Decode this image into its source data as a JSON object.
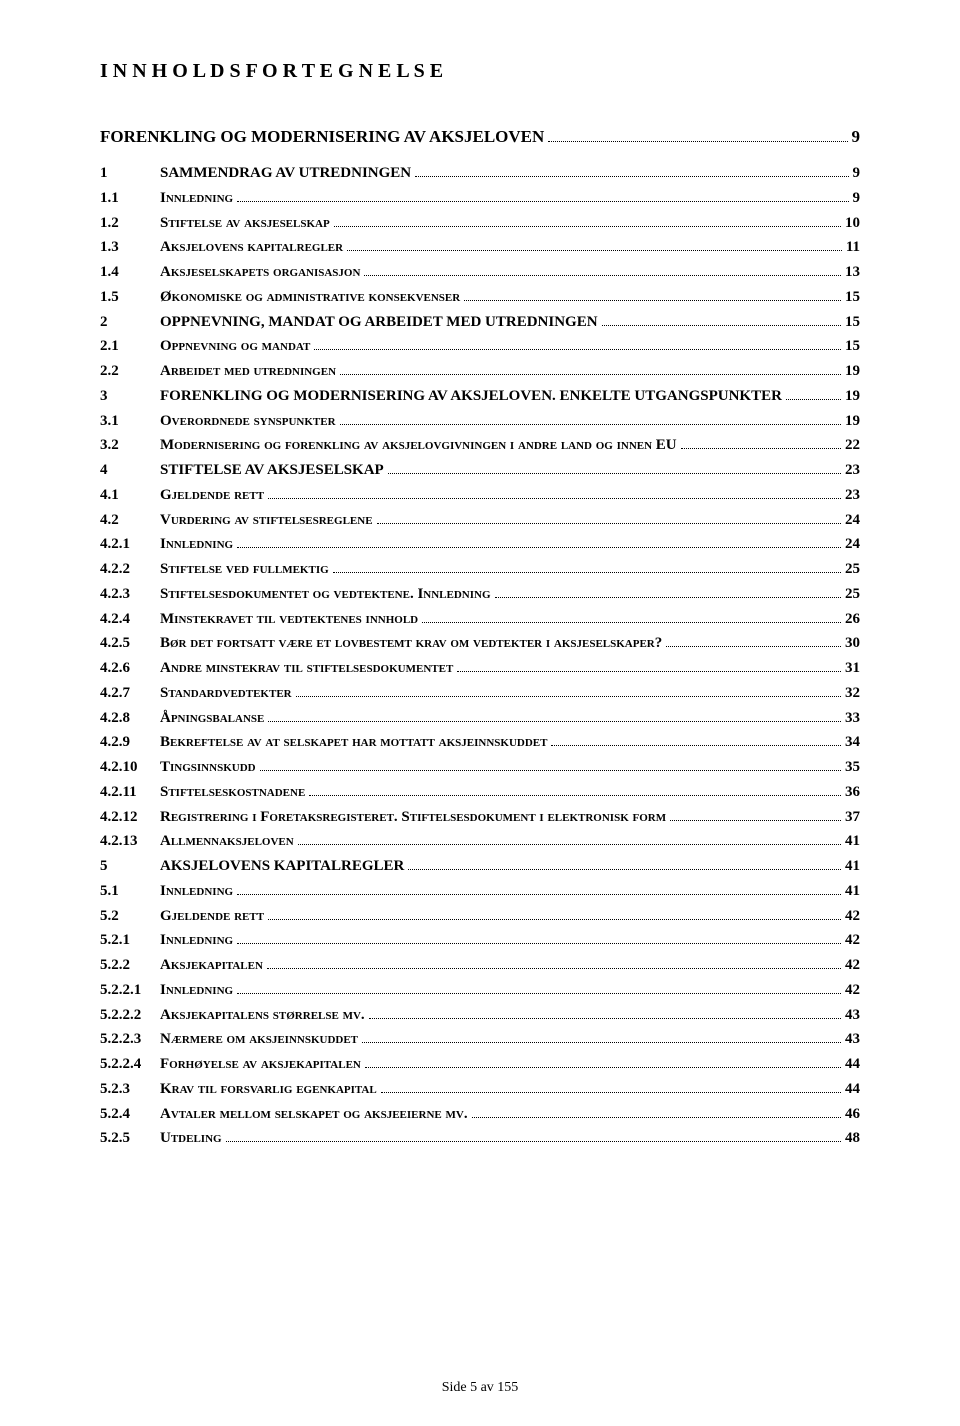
{
  "title_spaced": "I N N H O L D S F O R T E G N E L S E",
  "section_title": "FORENKLING OG MODERNISERING AV AKSJELOVEN",
  "section_title_page": "9",
  "footer": "Side 5 av 155",
  "toc": [
    {
      "num": "1",
      "text": "SAMMENDRAG AV UTREDNINGEN",
      "page": "9",
      "sc": false
    },
    {
      "num": "1.1",
      "text": "Innledning",
      "page": "9",
      "sc": true
    },
    {
      "num": "1.2",
      "text": "Stiftelse av aksjeselskap",
      "page": "10",
      "sc": true
    },
    {
      "num": "1.3",
      "text": "Aksjelovens kapitalregler",
      "page": "11",
      "sc": true
    },
    {
      "num": "1.4",
      "text": "Aksjeselskapets organisasjon",
      "page": "13",
      "sc": true
    },
    {
      "num": "1.5",
      "text": "Økonomiske og administrative konsekvenser",
      "page": "15",
      "sc": true
    },
    {
      "num": "2",
      "text": "OPPNEVNING, MANDAT OG ARBEIDET MED UTREDNINGEN",
      "page": "15",
      "sc": false
    },
    {
      "num": "2.1",
      "text": "Oppnevning og mandat",
      "page": "15",
      "sc": true
    },
    {
      "num": "2.2",
      "text": "Arbeidet med utredningen",
      "page": "19",
      "sc": true
    },
    {
      "num": "3",
      "text": "FORENKLING OG MODERNISERING AV AKSJELOVEN. ENKELTE UTGANGSPUNKTER",
      "page": "19",
      "sc": false
    },
    {
      "num": "3.1",
      "text": "Overordnede synspunkter",
      "page": "19",
      "sc": true
    },
    {
      "num": "3.2",
      "text": "Modernisering og forenkling av aksjelovgivningen i andre land og innen EU",
      "page": "22",
      "sc": true
    },
    {
      "num": "4",
      "text": "STIFTELSE AV AKSJESELSKAP",
      "page": "23",
      "sc": false
    },
    {
      "num": "4.1",
      "text": "Gjeldende rett",
      "page": "23",
      "sc": true
    },
    {
      "num": "4.2",
      "text": "Vurdering av stiftelsesreglene",
      "page": "24",
      "sc": true
    },
    {
      "num": "4.2.1",
      "text": "Innledning",
      "page": "24",
      "sc": true
    },
    {
      "num": "4.2.2",
      "text": "Stiftelse ved fullmektig",
      "page": "25",
      "sc": true
    },
    {
      "num": "4.2.3",
      "text": "Stiftelsesdokumentet og vedtektene. Innledning",
      "page": "25",
      "sc": true
    },
    {
      "num": "4.2.4",
      "text": "Minstekravet til vedtektenes innhold",
      "page": "26",
      "sc": true
    },
    {
      "num": "4.2.5",
      "text": "Bør det fortsatt være et lovbestemt krav om vedtekter i aksjeselskaper?",
      "page": "30",
      "sc": true
    },
    {
      "num": "4.2.6",
      "text": "Andre minstekrav til stiftelsesdokumentet",
      "page": "31",
      "sc": true
    },
    {
      "num": "4.2.7",
      "text": "Standardvedtekter",
      "page": "32",
      "sc": true
    },
    {
      "num": "4.2.8",
      "text": "Åpningsbalanse",
      "page": "33",
      "sc": true
    },
    {
      "num": "4.2.9",
      "text": "Bekreftelse av at selskapet har mottatt aksjeinnskuddet",
      "page": "34",
      "sc": true
    },
    {
      "num": "4.2.10",
      "text": "Tingsinnskudd",
      "page": "35",
      "sc": true
    },
    {
      "num": "4.2.11",
      "text": "Stiftelseskostnadene",
      "page": "36",
      "sc": true
    },
    {
      "num": "4.2.12",
      "text": "Registrering i Foretaksregisteret. Stiftelsesdokument i elektronisk form",
      "page": "37",
      "sc": true
    },
    {
      "num": "4.2.13",
      "text": "Allmennaksjeloven",
      "page": "41",
      "sc": true
    },
    {
      "num": "5",
      "text": "AKSJELOVENS KAPITALREGLER",
      "page": "41",
      "sc": false
    },
    {
      "num": "5.1",
      "text": "Innledning",
      "page": "41",
      "sc": true
    },
    {
      "num": "5.2",
      "text": "Gjeldende rett",
      "page": "42",
      "sc": true
    },
    {
      "num": "5.2.1",
      "text": "Innledning",
      "page": "42",
      "sc": true
    },
    {
      "num": "5.2.2",
      "text": "Aksjekapitalen",
      "page": "42",
      "sc": true
    },
    {
      "num": "5.2.2.1",
      "text": "Innledning",
      "page": "42",
      "sc": true
    },
    {
      "num": "5.2.2.2",
      "text": "Aksjekapitalens størrelse mv.",
      "page": "43",
      "sc": true
    },
    {
      "num": "5.2.2.3",
      "text": "Nærmere om aksjeinnskuddet",
      "page": "43",
      "sc": true
    },
    {
      "num": "5.2.2.4",
      "text": "Forhøyelse av aksjekapitalen",
      "page": "44",
      "sc": true
    },
    {
      "num": "5.2.3",
      "text": "Krav til forsvarlig egenkapital",
      "page": "44",
      "sc": true
    },
    {
      "num": "5.2.4",
      "text": "Avtaler mellom selskapet og aksjeeierne mv.",
      "page": "46",
      "sc": true
    },
    {
      "num": "5.2.5",
      "text": "Utdeling",
      "page": "48",
      "sc": true
    }
  ]
}
